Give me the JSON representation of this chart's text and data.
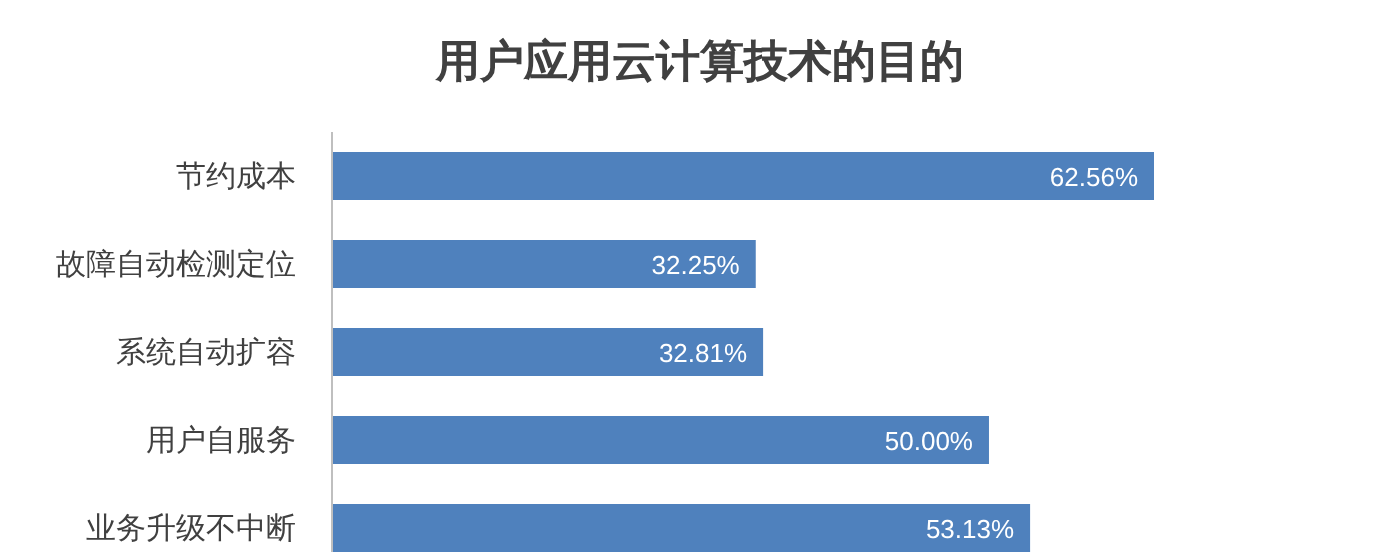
{
  "chart_data": {
    "type": "bar",
    "orientation": "horizontal",
    "title": "用户应用云计算技术的目的",
    "categories": [
      "节约成本",
      "故障自动检测定位",
      "系统自动扩容",
      "用户自服务",
      "业务升级不中断"
    ],
    "values": [
      62.56,
      32.25,
      32.81,
      50.0,
      53.13
    ],
    "value_labels": [
      "62.56%",
      "32.25%",
      "32.81%",
      "50.00%",
      "53.13%"
    ],
    "color": "#4f81bd"
  }
}
